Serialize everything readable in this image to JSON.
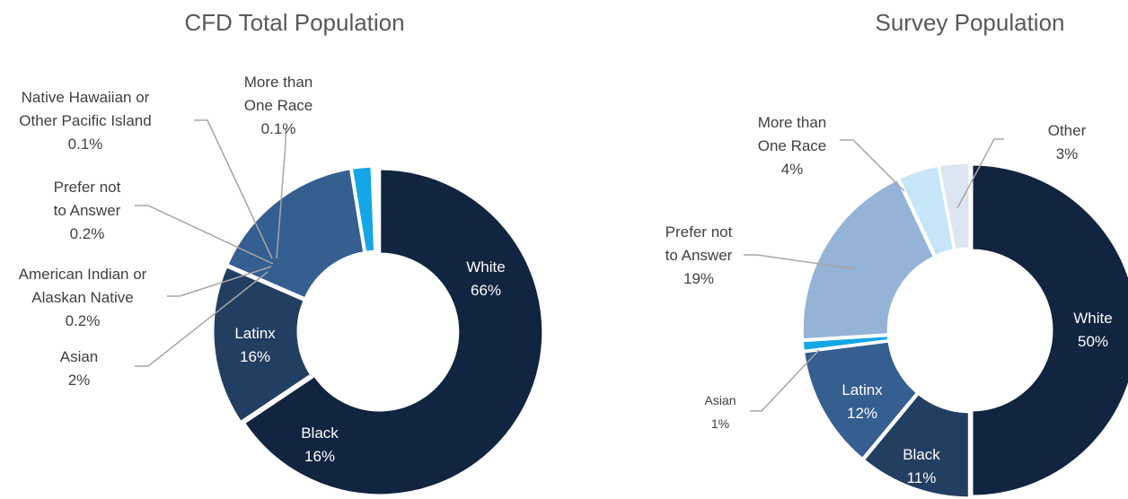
{
  "chart_data": [
    {
      "type": "pie",
      "variant": "donut",
      "title": "CFD Total Population",
      "slices": [
        {
          "label": [
            "White"
          ],
          "value": 66,
          "value_label": "66%",
          "color": "#112440",
          "label_placement": "inside"
        },
        {
          "label": [
            "Black"
          ],
          "value": 16,
          "value_label": "16%",
          "color": "#223e61",
          "label_placement": "inside"
        },
        {
          "label": [
            "Latinx"
          ],
          "value": 16,
          "value_label": "16%",
          "color": "#355e91",
          "label_placement": "inside"
        },
        {
          "label": [
            "Asian"
          ],
          "value": 2,
          "value_label": "2%",
          "color": "#14a6e6",
          "label_placement": "outside"
        },
        {
          "label": [
            "American Indian or",
            "Alaskan Native"
          ],
          "value": 0.2,
          "value_label": "0.2%",
          "color": "#9fd3f2",
          "label_placement": "outside"
        },
        {
          "label": [
            "Prefer not",
            "to Answer"
          ],
          "value": 0.2,
          "value_label": "0.2%",
          "color": "#95b3d7",
          "label_placement": "outside"
        },
        {
          "label": [
            "Native Hawaiian or",
            "Other Pacific Island"
          ],
          "value": 0.1,
          "value_label": "0.1%",
          "color": "#c6e6f8",
          "label_placement": "outside"
        },
        {
          "label": [
            "More than",
            "One Race"
          ],
          "value": 0.1,
          "value_label": "0.1%",
          "color": "#dce6f2",
          "label_placement": "outside"
        }
      ]
    },
    {
      "type": "pie",
      "variant": "donut",
      "title": "Survey Population",
      "slices": [
        {
          "label": [
            "White"
          ],
          "value": 50,
          "value_label": "50%",
          "color": "#112440",
          "label_placement": "inside"
        },
        {
          "label": [
            "Black"
          ],
          "value": 11,
          "value_label": "11%",
          "color": "#223e61",
          "label_placement": "inside"
        },
        {
          "label": [
            "Latinx"
          ],
          "value": 12,
          "value_label": "12%",
          "color": "#355e91",
          "label_placement": "inside"
        },
        {
          "label": [
            "Asian"
          ],
          "value": 1,
          "value_label": "1%",
          "color": "#14a6e6",
          "label_placement": "outside"
        },
        {
          "label": [
            "Prefer not",
            "to Answer"
          ],
          "value": 19,
          "value_label": "19%",
          "color": "#95b3d7",
          "label_placement": "outside"
        },
        {
          "label": [
            "More than",
            "One Race"
          ],
          "value": 4,
          "value_label": "4%",
          "color": "#c6e6f8",
          "label_placement": "outside"
        },
        {
          "label": [
            "Other"
          ],
          "value": 3,
          "value_label": "3%",
          "color": "#dce6f2",
          "label_placement": "outside"
        }
      ]
    }
  ]
}
